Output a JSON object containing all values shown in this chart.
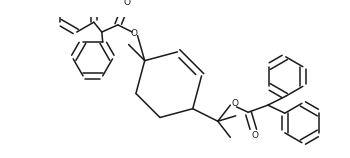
{
  "bg_color": "#ffffff",
  "line_color": "#1a1a1a",
  "line_width": 1.1,
  "figsize": [
    3.5,
    1.58
  ],
  "dpi": 100,
  "xlim": [
    0,
    350
  ],
  "ylim": [
    0,
    158
  ]
}
